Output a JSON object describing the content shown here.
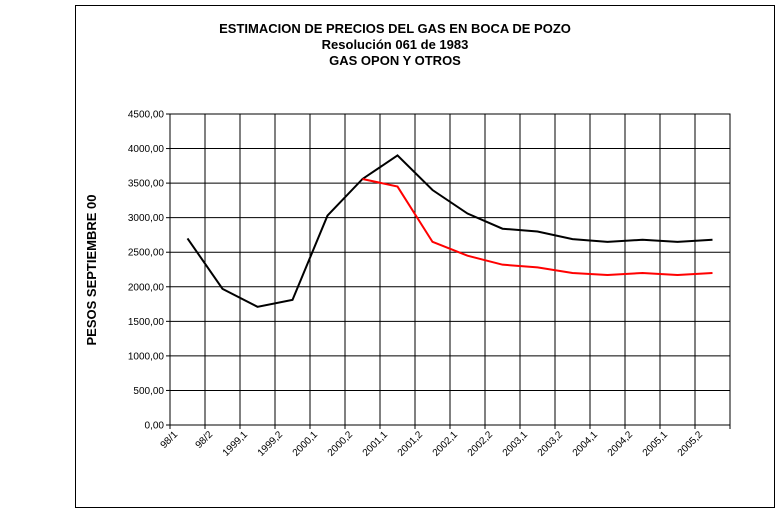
{
  "chart_data": {
    "type": "line",
    "title": "ESTIMACION DE PRECIOS DEL GAS EN BOCA DE POZO",
    "subtitle": [
      "Resolución 061 de 1983",
      "GAS OPON Y OTROS"
    ],
    "y_label": "PESOS SEPTIEMBRE 00",
    "categories": [
      "98/1",
      "98/2",
      "1999,1",
      "1999,2",
      "2000,1",
      "2000,2",
      "2001,1",
      "2001,2",
      "2002,1",
      "2002,2",
      "2003,1",
      "2003,2",
      "2004,1",
      "2004,2",
      "2005,1",
      "2005,2"
    ],
    "series": [
      {
        "color": "#000000",
        "values": [
          2700,
          1970,
          1710,
          1810,
          3030,
          3560,
          3900,
          3400,
          3060,
          2840,
          2800,
          2690,
          2650,
          2680,
          2650,
          2680
        ]
      },
      {
        "color": "#ff0000",
        "values": [
          null,
          null,
          null,
          null,
          null,
          3560,
          3450,
          2650,
          2450,
          2320,
          2280,
          2200,
          2170,
          2200,
          2170,
          2200
        ]
      }
    ],
    "ylim": [
      0,
      4500
    ],
    "yticks": [
      {
        "value": 0,
        "label": "0,00"
      },
      {
        "value": 500,
        "label": "500,00"
      },
      {
        "value": 1000,
        "label": "1000,00"
      },
      {
        "value": 1500,
        "label": "1500,00"
      },
      {
        "value": 2000,
        "label": "2000,00"
      },
      {
        "value": 2500,
        "label": "2500,00"
      },
      {
        "value": 3000,
        "label": "3000,00"
      },
      {
        "value": 3500,
        "label": "3500,00"
      },
      {
        "value": 4000,
        "label": "4000,00"
      },
      {
        "value": 4500,
        "label": "4500,00"
      }
    ],
    "grid": true
  }
}
